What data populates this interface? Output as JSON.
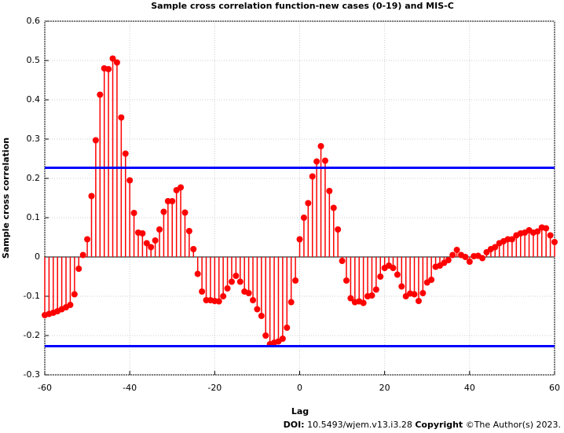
{
  "chart_data": {
    "type": "stem",
    "title": "Sample cross correlation function-new cases (0-19) and MIS-C",
    "x_label": "Lag",
    "y_label": "Sample cross correlation",
    "x": [
      -60,
      -59,
      -58,
      -57,
      -56,
      -55,
      -54,
      -53,
      -52,
      -51,
      -50,
      -49,
      -48,
      -47,
      -46,
      -45,
      -44,
      -43,
      -42,
      -41,
      -40,
      -39,
      -38,
      -37,
      -36,
      -35,
      -34,
      -33,
      -32,
      -31,
      -30,
      -29,
      -28,
      -27,
      -26,
      -25,
      -24,
      -23,
      -22,
      -21,
      -20,
      -19,
      -18,
      -17,
      -16,
      -15,
      -14,
      -13,
      -12,
      -11,
      -10,
      -9,
      -8,
      -7,
      -6,
      -5,
      -4,
      -3,
      -2,
      -1,
      0,
      1,
      2,
      3,
      4,
      5,
      6,
      7,
      8,
      9,
      10,
      11,
      12,
      13,
      14,
      15,
      16,
      17,
      18,
      19,
      20,
      21,
      22,
      23,
      24,
      25,
      26,
      27,
      28,
      29,
      30,
      31,
      32,
      33,
      34,
      35,
      36,
      37,
      38,
      39,
      40,
      41,
      42,
      43,
      44,
      45,
      46,
      47,
      48,
      49,
      50,
      51,
      52,
      53,
      54,
      55,
      56,
      57,
      58,
      59,
      60
    ],
    "values": [
      -0.148,
      -0.145,
      -0.142,
      -0.138,
      -0.133,
      -0.128,
      -0.122,
      -0.095,
      -0.03,
      0.005,
      0.045,
      0.155,
      0.297,
      0.413,
      0.48,
      0.478,
      0.505,
      0.495,
      0.355,
      0.263,
      0.195,
      0.112,
      0.062,
      0.06,
      0.035,
      0.025,
      0.042,
      0.07,
      0.115,
      0.142,
      0.142,
      0.17,
      0.177,
      0.113,
      0.066,
      0.02,
      -0.043,
      -0.088,
      -0.11,
      -0.11,
      -0.112,
      -0.113,
      -0.1,
      -0.08,
      -0.063,
      -0.048,
      -0.063,
      -0.088,
      -0.092,
      -0.11,
      -0.133,
      -0.15,
      -0.2,
      -0.222,
      -0.218,
      -0.215,
      -0.208,
      -0.18,
      -0.115,
      -0.06,
      0.045,
      0.1,
      0.137,
      0.205,
      0.243,
      0.282,
      0.245,
      0.168,
      0.125,
      0.07,
      -0.01,
      -0.06,
      -0.105,
      -0.115,
      -0.113,
      -0.117,
      -0.1,
      -0.098,
      -0.083,
      -0.05,
      -0.028,
      -0.022,
      -0.028,
      -0.045,
      -0.075,
      -0.1,
      -0.093,
      -0.095,
      -0.112,
      -0.092,
      -0.065,
      -0.058,
      -0.025,
      -0.022,
      -0.015,
      -0.008,
      0.005,
      0.018,
      0.005,
      0,
      -0.012,
      0.002,
      0.003,
      -0.003,
      0.012,
      0.02,
      0.025,
      0.035,
      0.04,
      0.045,
      0.045,
      0.055,
      0.06,
      0.062,
      0.068,
      0.062,
      0.065,
      0.075,
      0.073,
      0.055,
      0.038
    ],
    "color": "#ff0000",
    "bounds": [
      0.227,
      -0.227
    ],
    "bounds_color": "#0000ff",
    "xlim": [
      -60,
      60
    ],
    "xticks": [
      -60,
      -40,
      -20,
      0,
      20,
      40,
      60
    ],
    "ylim": [
      -0.3,
      0.6
    ],
    "yticks": [
      -0.3,
      -0.2,
      -0.1,
      0,
      0.1,
      0.2,
      0.3,
      0.4,
      0.5,
      0.6
    ],
    "grid": true
  },
  "footer": {
    "doi_label": "DOI:",
    "doi": "10.5493/wjem.v13.i3.28",
    "copyright_label": "Copyright",
    "copyright": "©The Author(s) 2023."
  }
}
